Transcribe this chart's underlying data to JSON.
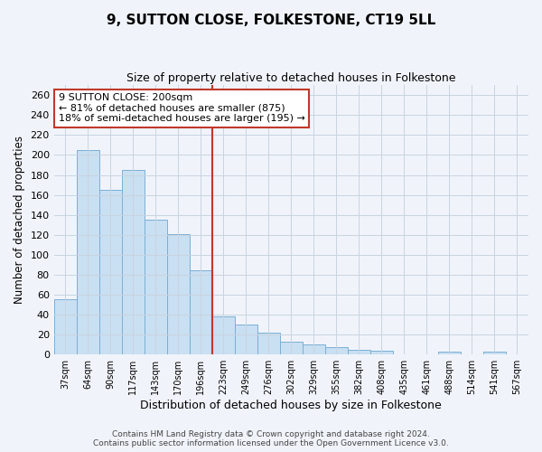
{
  "title": "9, SUTTON CLOSE, FOLKESTONE, CT19 5LL",
  "subtitle": "Size of property relative to detached houses in Folkestone",
  "xlabel": "Distribution of detached houses by size in Folkestone",
  "ylabel": "Number of detached properties",
  "footer_line1": "Contains HM Land Registry data © Crown copyright and database right 2024.",
  "footer_line2": "Contains public sector information licensed under the Open Government Licence v3.0.",
  "annotation_title": "9 SUTTON CLOSE: 200sqm",
  "annotation_line2": "← 81% of detached houses are smaller (875)",
  "annotation_line3": "18% of semi-detached houses are larger (195) →",
  "bar_color": "#c9dff2",
  "bar_edge_color": "#7bafd4",
  "vline_color": "#c0392b",
  "categories": [
    "37sqm",
    "64sqm",
    "90sqm",
    "117sqm",
    "143sqm",
    "170sqm",
    "196sqm",
    "223sqm",
    "249sqm",
    "276sqm",
    "302sqm",
    "329sqm",
    "355sqm",
    "382sqm",
    "408sqm",
    "435sqm",
    "461sqm",
    "488sqm",
    "514sqm",
    "541sqm",
    "567sqm"
  ],
  "values": [
    55,
    205,
    165,
    185,
    135,
    121,
    84,
    38,
    30,
    22,
    13,
    10,
    7,
    5,
    4,
    0,
    0,
    3,
    0,
    3,
    0
  ],
  "ylim": [
    0,
    270
  ],
  "yticks": [
    0,
    20,
    40,
    60,
    80,
    100,
    120,
    140,
    160,
    180,
    200,
    220,
    240,
    260
  ],
  "bg_color": "#f0f4fa",
  "plot_bg_color": "#f0f4fa",
  "grid_color": "#c8d4e0",
  "annotation_box_color": "#ffffff",
  "annotation_box_edge": "#c0392b",
  "vline_position": 6.5,
  "title_fontsize": 11,
  "subtitle_fontsize": 9
}
